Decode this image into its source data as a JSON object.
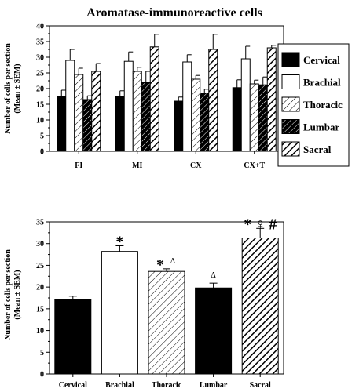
{
  "colors": {
    "cervical": "#000000",
    "brachial": "#ffffff",
    "lumbar": "#000000",
    "sacral": "#000000",
    "stroke": "#000000"
  },
  "chart_data": [
    {
      "type": "bar",
      "title": "Aromatase-immunoreactive   cells",
      "ylabel_lines": [
        "Number of cells per section",
        "(Mean ± SEM)"
      ],
      "xlabel": "",
      "ylim": [
        0,
        40
      ],
      "yticks": [
        0,
        5,
        10,
        15,
        20,
        25,
        30,
        35,
        40
      ],
      "categories": [
        "FI",
        "MI",
        "CX",
        "CX+T"
      ],
      "grid": false,
      "legend_position": "right",
      "series": [
        {
          "name": "Cervical",
          "pattern": "solid-black",
          "values": [
            17.5,
            17.5,
            16.0,
            20.3
          ],
          "errors": [
            2.0,
            1.8,
            1.3,
            2.5
          ]
        },
        {
          "name": "Brachial",
          "pattern": "white",
          "values": [
            29.0,
            28.7,
            28.5,
            29.5
          ],
          "errors": [
            3.5,
            3.0,
            2.3,
            4.0
          ]
        },
        {
          "name": "Thoracic",
          "pattern": "light-diagonal",
          "values": [
            24.5,
            25.5,
            23.0,
            21.5
          ],
          "errors": [
            2.0,
            1.3,
            1.2,
            1.2
          ]
        },
        {
          "name": "Lumbar",
          "pattern": "black-diagonal",
          "values": [
            16.5,
            22.0,
            18.5,
            21.2
          ],
          "errors": [
            1.2,
            3.5,
            1.3,
            2.5
          ]
        },
        {
          "name": "Sacral",
          "pattern": "heavy-diagonal",
          "values": [
            25.5,
            33.3,
            32.5,
            33.0
          ],
          "errors": [
            2.5,
            4.0,
            4.8,
            0.8
          ]
        }
      ]
    },
    {
      "type": "bar",
      "title": "",
      "ylabel_lines": [
        "Number of cells per section",
        "(Mean ± SEM)"
      ],
      "xlabel": "",
      "ylim": [
        0,
        35
      ],
      "yticks": [
        0,
        5,
        10,
        15,
        20,
        25,
        30,
        35
      ],
      "categories": [
        "Cervical",
        "Brachial",
        "Thoracic",
        "Lumbar",
        "Sacral"
      ],
      "grid": false,
      "values": [
        17.2,
        28.2,
        23.6,
        19.8,
        31.3
      ],
      "errors": [
        0.7,
        1.3,
        0.6,
        1.1,
        2.2
      ],
      "patterns": [
        "solid-black",
        "white",
        "light-diagonal",
        "solid-black",
        "heavy-diagonal"
      ],
      "annotations": [
        {
          "category": "Brachial",
          "marks": [
            {
              "text": "*",
              "size": "big"
            }
          ]
        },
        {
          "category": "Thoracic",
          "marks": [
            {
              "text": "*",
              "size": "big"
            },
            {
              "text": "Δ",
              "size": "small"
            }
          ]
        },
        {
          "category": "Lumbar",
          "marks": [
            {
              "text": "Δ",
              "size": "small"
            }
          ]
        },
        {
          "category": "Sacral",
          "marks": [
            {
              "text": "*",
              "size": "big"
            },
            {
              "text": "♀",
              "size": "big"
            },
            {
              "text": "#",
              "size": "big"
            }
          ]
        }
      ]
    }
  ]
}
